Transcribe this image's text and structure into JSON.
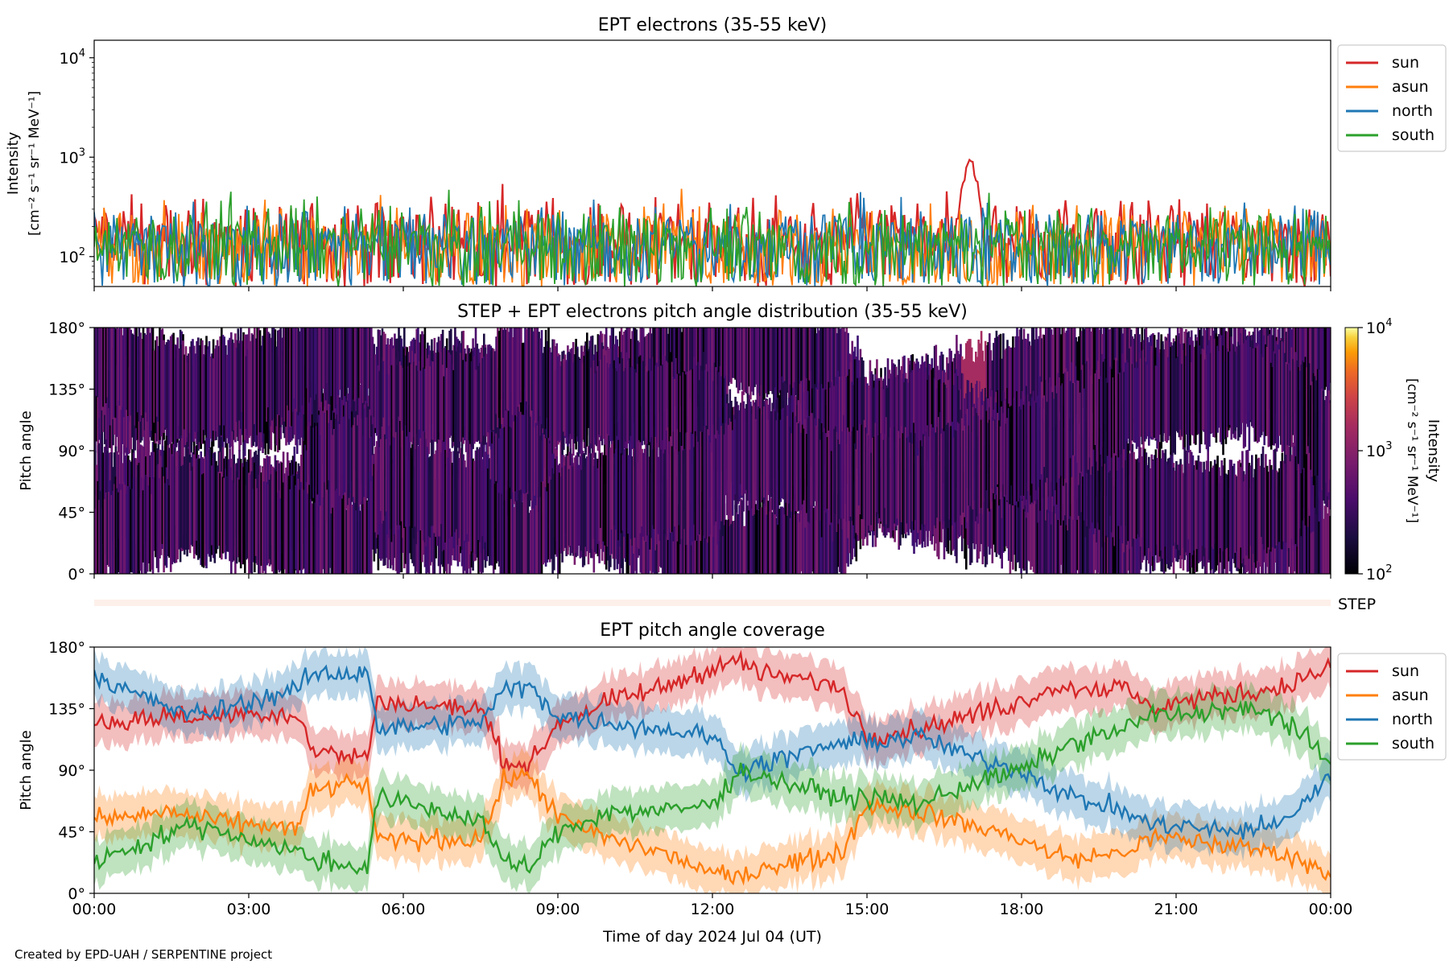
{
  "credit": "Created by EPD-UAH / SERPENTINE project",
  "chart_data": [
    {
      "type": "line",
      "title": "EPT electrons (35-55 keV)",
      "ylabel_line1": "Intensity",
      "ylabel_line2": "[cm⁻² s⁻¹ sr⁻¹ MeV⁻¹]",
      "yscale": "log",
      "ylim": [
        50,
        15000
      ],
      "yticks": [
        {
          "value": 100,
          "base": "10",
          "exp": "2"
        },
        {
          "value": 1000,
          "base": "10",
          "exp": "3"
        },
        {
          "value": 10000,
          "base": "10",
          "exp": "4"
        }
      ],
      "xlim_hours": [
        0,
        24
      ],
      "legend_position": "upper right, outside",
      "series": [
        {
          "name": "sun",
          "color": "#d62728",
          "typical": 170,
          "peak": {
            "hour": 17.0,
            "value": 1150
          }
        },
        {
          "name": "asun",
          "color": "#ff7f0e",
          "typical": 150
        },
        {
          "name": "north",
          "color": "#1f77b4",
          "typical": 150
        },
        {
          "name": "south",
          "color": "#2ca02c",
          "typical": 150
        }
      ]
    },
    {
      "type": "heatmap",
      "title": "STEP + EPT electrons pitch angle distribution (35-55 keV)",
      "ylabel": "Pitch angle",
      "ylim": [
        0,
        180
      ],
      "ytick_labels": [
        "0°",
        "45°",
        "90°",
        "135°",
        "180°"
      ],
      "colorbar": {
        "label": "Intensity [cm⁻² s⁻¹ sr⁻¹ MeV⁻¹]",
        "label_line1": "Intensity",
        "label_line2": "[cm⁻² s⁻¹ sr⁻¹ MeV⁻¹]",
        "scale": "log",
        "range": [
          100,
          10000
        ],
        "ticks": [
          {
            "value": 100,
            "base": "10",
            "exp": "2"
          },
          {
            "value": 1000,
            "base": "10",
            "exp": "3"
          },
          {
            "value": 10000,
            "base": "10",
            "exp": "4"
          }
        ],
        "colormap": "inferno"
      },
      "step_label": "STEP"
    },
    {
      "type": "line",
      "title": "EPT pitch angle coverage",
      "xlabel": "Time of day 2024 Jul 04 (UT)",
      "ylabel": "Pitch angle",
      "ylim": [
        0,
        180
      ],
      "ytick_labels": [
        "0°",
        "45°",
        "90°",
        "135°",
        "180°"
      ],
      "xtick_labels": [
        "00:00",
        "03:00",
        "06:00",
        "09:00",
        "12:00",
        "15:00",
        "18:00",
        "21:00",
        "00:00"
      ],
      "legend_position": "upper right, outside",
      "series": [
        {
          "name": "sun",
          "color": "#d62728",
          "hours": [
            0,
            0.5,
            1.5,
            2,
            3,
            4,
            4.2,
            5,
            5.3,
            5.5,
            7.3,
            7.5,
            8,
            8.5,
            9,
            10,
            11,
            12,
            12.5,
            13,
            14,
            14.5,
            15,
            16,
            17,
            18,
            18.5,
            19,
            20,
            20.5,
            21,
            22,
            23,
            24
          ],
          "values": [
            125,
            125,
            130,
            128,
            132,
            130,
            105,
            100,
            100,
            140,
            135,
            135,
            95,
            95,
            125,
            140,
            150,
            165,
            170,
            160,
            155,
            150,
            115,
            120,
            130,
            140,
            150,
            150,
            150,
            135,
            140,
            145,
            150,
            165
          ]
        },
        {
          "name": "asun",
          "color": "#ff7f0e",
          "hours": [
            0,
            0.5,
            1.5,
            2,
            3,
            4,
            4.2,
            5,
            5.3,
            5.5,
            7.3,
            7.5,
            8,
            8.5,
            9,
            10,
            11,
            12,
            12.5,
            13,
            14,
            14.5,
            15,
            16,
            17,
            18,
            18.5,
            19,
            20,
            20.5,
            21,
            22,
            23,
            24
          ],
          "values": [
            55,
            55,
            60,
            55,
            50,
            48,
            75,
            80,
            80,
            38,
            40,
            40,
            85,
            85,
            55,
            40,
            30,
            15,
            10,
            20,
            25,
            30,
            65,
            60,
            50,
            40,
            30,
            25,
            30,
            40,
            40,
            35,
            30,
            15
          ]
        },
        {
          "name": "north",
          "color": "#1f77b4",
          "hours": [
            0,
            0.5,
            1.5,
            2,
            3,
            4,
            4.2,
            5,
            5.3,
            5.5,
            7.3,
            7.5,
            8,
            8.5,
            9,
            10,
            11,
            12,
            12.5,
            13,
            14,
            14.5,
            15,
            16,
            17,
            18,
            18.5,
            19,
            20,
            20.5,
            21,
            22,
            23,
            24
          ],
          "values": [
            160,
            150,
            135,
            130,
            140,
            150,
            160,
            160,
            165,
            120,
            125,
            125,
            150,
            150,
            130,
            125,
            120,
            115,
            90,
            95,
            105,
            110,
            110,
            115,
            100,
            90,
            80,
            70,
            60,
            50,
            50,
            45,
            50,
            85
          ]
        },
        {
          "name": "south",
          "color": "#2ca02c",
          "hours": [
            0,
            0.5,
            1.5,
            2,
            3,
            4,
            4.2,
            5,
            5.3,
            5.5,
            7.3,
            7.5,
            8,
            8.5,
            9,
            10,
            11,
            12,
            12.5,
            13,
            14,
            14.5,
            15,
            16,
            17,
            18,
            18.5,
            19,
            20,
            20.5,
            21,
            22,
            23,
            24
          ],
          "values": [
            25,
            30,
            45,
            50,
            40,
            30,
            25,
            20,
            20,
            70,
            55,
            55,
            20,
            20,
            45,
            60,
            60,
            65,
            90,
            85,
            75,
            70,
            70,
            65,
            80,
            90,
            100,
            110,
            120,
            130,
            130,
            135,
            130,
            95
          ]
        }
      ]
    }
  ]
}
